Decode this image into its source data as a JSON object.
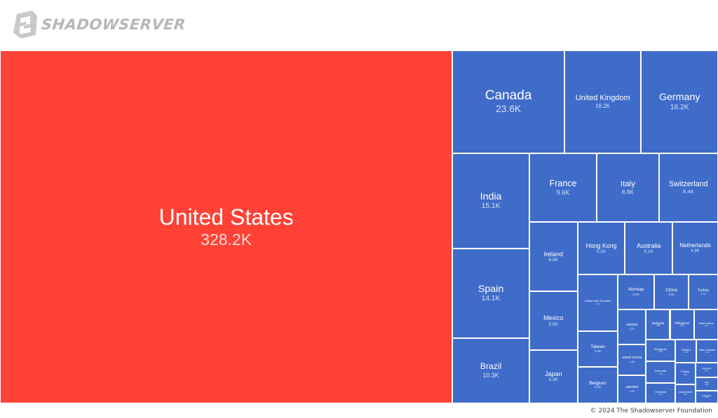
{
  "brand": {
    "name": "SHADOWSERVER"
  },
  "footer": {
    "copyright": "© 2024 The Shadowserver Foundation"
  },
  "colors": {
    "highlight": "#ff4136",
    "tile": "#3f6cc9",
    "border": "#ffffff"
  },
  "chart_data": {
    "type": "treemap",
    "highlighted": "United States",
    "items": [
      {
        "name": "United States",
        "label": "328.2K",
        "value": 328200
      },
      {
        "name": "Canada",
        "label": "23.6K",
        "value": 23600
      },
      {
        "name": "United Kingdom",
        "label": "16.2K",
        "value": 16200
      },
      {
        "name": "Germany",
        "label": "16.2K",
        "value": 16200
      },
      {
        "name": "India",
        "label": "15.1K",
        "value": 15100
      },
      {
        "name": "Spain",
        "label": "14.1K",
        "value": 14100
      },
      {
        "name": "Brazil",
        "label": "10.3K",
        "value": 10300
      },
      {
        "name": "France",
        "label": "9.6K",
        "value": 9600
      },
      {
        "name": "Italy",
        "label": "8.8K",
        "value": 8800
      },
      {
        "name": "Switzerland",
        "label": "8.4K",
        "value": 8400
      },
      {
        "name": "Ireland",
        "label": "6.9K",
        "value": 6900
      },
      {
        "name": "Netherlands",
        "label": "4.9K",
        "value": 4900
      },
      {
        "name": "United Arab Emirates",
        "label": "4.7K",
        "value": 4700
      },
      {
        "name": "Mexico",
        "label": "5.8K",
        "value": 5800
      },
      {
        "name": "Japan",
        "label": "5.3K",
        "value": 5300
      },
      {
        "name": "Hong Kong",
        "label": "5.1K",
        "value": 5100
      },
      {
        "name": "Australia",
        "label": "5.1K",
        "value": 5100
      },
      {
        "name": "Taiwan",
        "label": "3.0K",
        "value": 3000
      },
      {
        "name": "Belgium",
        "label": "3.0K",
        "value": 3000
      },
      {
        "name": "Norway",
        "label": "2.6K",
        "value": 2600
      },
      {
        "name": "China",
        "label": "2.5K",
        "value": 2500
      },
      {
        "name": "Turkey",
        "label": "2.1K",
        "value": 2100
      },
      {
        "name": "Austria",
        "label": "2.0K",
        "value": 2000
      },
      {
        "name": "South Korea",
        "label": "1.8K",
        "value": 1800
      },
      {
        "name": "Malaysia",
        "label": "1.5K",
        "value": 1500
      },
      {
        "name": "Philippines",
        "label": "1.5K",
        "value": 1500
      },
      {
        "name": "Singapore",
        "label": "1.3K",
        "value": 1300
      },
      {
        "name": "Finland",
        "label": "1.0K",
        "value": 1000
      },
      {
        "name": "New Zealand",
        "label": "1.0K",
        "value": 1000
      },
      {
        "name": "Sweden",
        "label": "1.6K",
        "value": 1600
      },
      {
        "name": "South Africa",
        "label": "1.5K",
        "value": 1500
      },
      {
        "name": "Denmark",
        "label": "1.3K",
        "value": 1300
      },
      {
        "name": "Colombia",
        "label": "1.2K",
        "value": 1200
      },
      {
        "name": "Poland",
        "label": "0.9K",
        "value": 900
      },
      {
        "name": "Saudi Arabia",
        "label": "0.8K",
        "value": 800
      },
      {
        "name": "Argentina",
        "label": "0.7K",
        "value": 700
      },
      {
        "name": "Chile",
        "label": "0.6K",
        "value": 600
      },
      {
        "name": "Indonesia",
        "label": "0.6K",
        "value": 600
      }
    ]
  }
}
